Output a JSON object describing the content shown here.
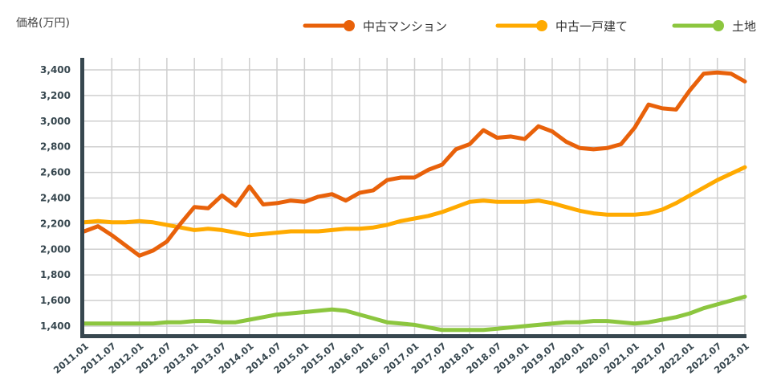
{
  "chart_data": {
    "type": "line",
    "title": "",
    "ylabel": "価格(万円)",
    "xlabel": "",
    "ylim": [
      1325,
      3490
    ],
    "yticks": [
      1400,
      1600,
      1800,
      2000,
      2200,
      2400,
      2600,
      2800,
      3000,
      3200,
      3400
    ],
    "ytick_labels": [
      "1,400",
      "1,600",
      "1,800",
      "2,000",
      "2,200",
      "2,400",
      "2,600",
      "2,800",
      "3,000",
      "3,200",
      "3,400"
    ],
    "xtick_labels": [
      "2011.01",
      "2011.07",
      "2012.01",
      "2012.07",
      "2013.01",
      "2013.07",
      "2014.01",
      "2014.07",
      "2015.01",
      "2015.07",
      "2016.01",
      "2016.07",
      "2017.01",
      "2017.07",
      "2018.01",
      "2018.07",
      "2019.01",
      "2019.07",
      "2020.01",
      "2020.07",
      "2021.01",
      "2021.07",
      "2022.01",
      "2022.07",
      "2023.01"
    ],
    "x_note_points_per_tick": 2,
    "grid": true,
    "legend_position": "top-right",
    "series": [
      {
        "name": "中古マンション",
        "color": "#e8610a",
        "values": [
          2140,
          2180,
          2110,
          2030,
          1950,
          1990,
          2060,
          2200,
          2330,
          2320,
          2420,
          2340,
          2490,
          2350,
          2360,
          2380,
          2370,
          2410,
          2430,
          2380,
          2440,
          2460,
          2540,
          2560,
          2560,
          2620,
          2660,
          2780,
          2820,
          2930,
          2870,
          2880,
          2860,
          2960,
          2920,
          2840,
          2790,
          2780,
          2790,
          2820,
          2950,
          3130,
          3100,
          3090,
          3240,
          3370,
          3380,
          3370,
          3310
        ]
      },
      {
        "name": "中古一戸建て",
        "color": "#ffaa00",
        "values": [
          2210,
          2220,
          2210,
          2210,
          2220,
          2210,
          2190,
          2170,
          2150,
          2160,
          2150,
          2130,
          2110,
          2120,
          2130,
          2140,
          2140,
          2140,
          2150,
          2160,
          2160,
          2170,
          2190,
          2220,
          2240,
          2260,
          2290,
          2330,
          2370,
          2380,
          2370,
          2370,
          2370,
          2380,
          2360,
          2330,
          2300,
          2280,
          2270,
          2270,
          2270,
          2280,
          2310,
          2360,
          2420,
          2480,
          2540,
          2590,
          2640
        ]
      },
      {
        "name": "土地",
        "color": "#8cc63f",
        "values": [
          1420,
          1420,
          1420,
          1420,
          1420,
          1420,
          1430,
          1430,
          1440,
          1440,
          1430,
          1430,
          1450,
          1470,
          1490,
          1500,
          1510,
          1520,
          1530,
          1520,
          1490,
          1460,
          1430,
          1420,
          1410,
          1390,
          1370,
          1370,
          1370,
          1370,
          1380,
          1390,
          1400,
          1410,
          1420,
          1430,
          1430,
          1440,
          1440,
          1430,
          1420,
          1430,
          1450,
          1470,
          1500,
          1540,
          1570,
          1600,
          1630
        ]
      }
    ]
  }
}
